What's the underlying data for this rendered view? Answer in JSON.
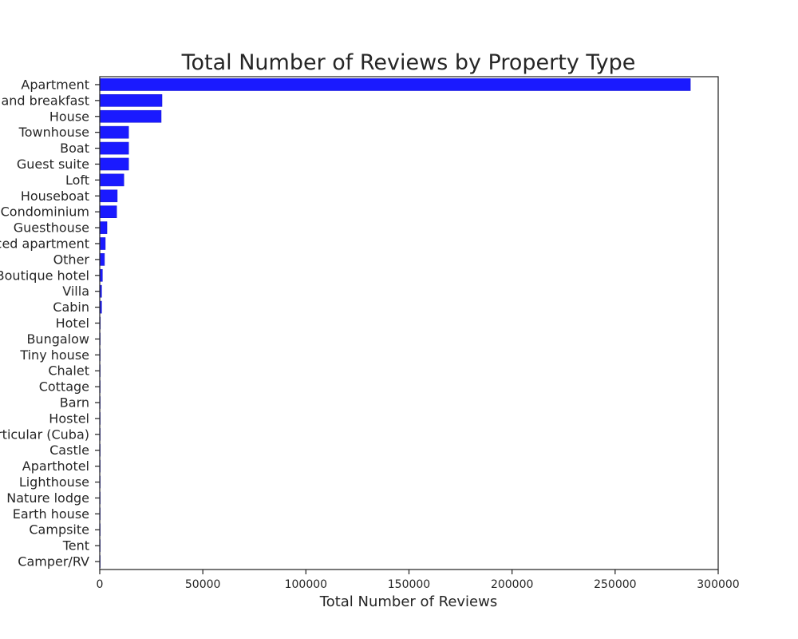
{
  "chart_data": {
    "type": "bar",
    "orientation": "horizontal",
    "title": "Total Number of Reviews by Property Type",
    "xlabel": "Total Number of Reviews",
    "ylabel": "",
    "xlim": [
      0,
      300000
    ],
    "xticks": [
      "0",
      "50000",
      "100000",
      "150000",
      "200000",
      "250000",
      "300000"
    ],
    "grid": false,
    "bar_color": "#1a1aff",
    "categories": [
      "Apartment",
      "Bed and breakfast",
      "House",
      "Townhouse",
      "Boat",
      "Guest suite",
      "Loft",
      "Houseboat",
      "Condominium",
      "Guesthouse",
      "Serviced apartment",
      "Other",
      "Boutique hotel",
      "Villa",
      "Cabin",
      "Hotel",
      "Bungalow",
      "Tiny house",
      "Chalet",
      "Cottage",
      "Barn",
      "Hostel",
      "Casa particular (Cuba)",
      "Castle",
      "Aparthotel",
      "Lighthouse",
      "Nature lodge",
      "Earth house",
      "Campsite",
      "Tent",
      "Camper/RV"
    ],
    "values": [
      286500,
      30200,
      29800,
      14000,
      14000,
      14000,
      11700,
      8500,
      8200,
      3500,
      2700,
      2300,
      1300,
      900,
      900,
      300,
      250,
      200,
      150,
      120,
      100,
      90,
      80,
      70,
      60,
      50,
      40,
      30,
      20,
      15,
      10
    ]
  }
}
